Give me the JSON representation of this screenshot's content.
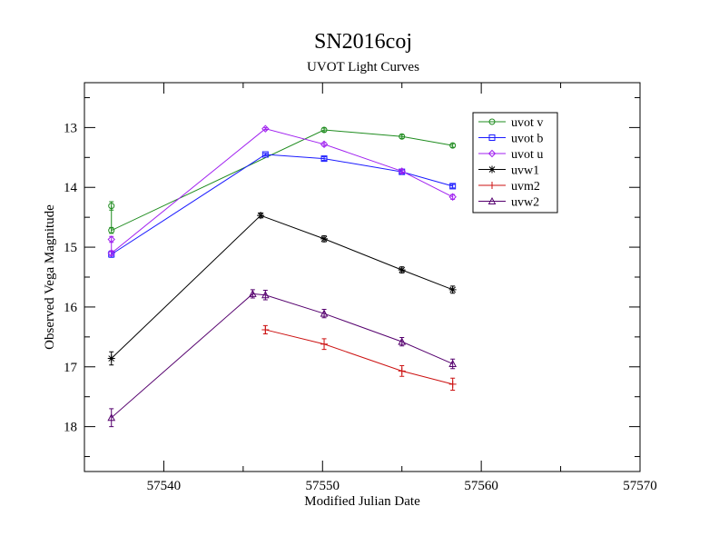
{
  "chart_data": {
    "type": "line",
    "title": "SN2016coj",
    "subtitle": "UVOT Light Curves",
    "xlabel": "Modified Julian Date",
    "ylabel": "Observed Vega Magnitude",
    "xlim": [
      57535,
      57570
    ],
    "ylim": [
      18.75,
      12.25
    ],
    "y_inverted": true,
    "x_ticks": [
      57540,
      57550,
      57560,
      57570
    ],
    "y_ticks": [
      13,
      14,
      15,
      16,
      17,
      18
    ],
    "grid": false,
    "legend_position": "top-right",
    "series": [
      {
        "name": "uvot v",
        "color": "#1f8c1f",
        "marker": "circle",
        "points": [
          {
            "x": 57536.7,
            "y": 14.31,
            "err": 0.07
          },
          {
            "x": 57536.7,
            "y": 14.72,
            "err": 0.05
          },
          {
            "x": 57550.1,
            "y": 13.04,
            "err": 0.03
          },
          {
            "x": 57555.0,
            "y": 13.15,
            "err": 0.03
          },
          {
            "x": 57558.2,
            "y": 13.3,
            "err": 0.03
          }
        ]
      },
      {
        "name": "uvot b",
        "color": "#1a1aff",
        "marker": "square",
        "points": [
          {
            "x": 57536.7,
            "y": 15.12,
            "err": 0.05
          },
          {
            "x": 57546.4,
            "y": 13.45,
            "err": 0.02
          },
          {
            "x": 57550.1,
            "y": 13.52,
            "err": 0.03
          },
          {
            "x": 57555.0,
            "y": 13.74,
            "err": 0.03
          },
          {
            "x": 57558.2,
            "y": 13.98,
            "err": 0.03
          }
        ]
      },
      {
        "name": "uvot u",
        "color": "#a020f0",
        "marker": "diamond",
        "points": [
          {
            "x": 57536.7,
            "y": 14.87,
            "err": 0.05
          },
          {
            "x": 57536.7,
            "y": 15.1,
            "err": 0.04
          },
          {
            "x": 57546.4,
            "y": 13.02,
            "err": 0.02
          },
          {
            "x": 57550.1,
            "y": 13.28,
            "err": 0.03
          },
          {
            "x": 57555.0,
            "y": 13.73,
            "err": 0.03
          },
          {
            "x": 57558.2,
            "y": 14.16,
            "err": 0.04
          }
        ]
      },
      {
        "name": "uvw1",
        "color": "#000000",
        "marker": "star",
        "points": [
          {
            "x": 57536.7,
            "y": 16.86,
            "err": 0.11
          },
          {
            "x": 57546.1,
            "y": 14.47,
            "err": 0.04
          },
          {
            "x": 57550.1,
            "y": 14.86,
            "err": 0.05
          },
          {
            "x": 57555.0,
            "y": 15.38,
            "err": 0.05
          },
          {
            "x": 57558.2,
            "y": 15.71,
            "err": 0.06
          }
        ]
      },
      {
        "name": "uvm2",
        "color": "#cc1111",
        "marker": "plus",
        "points": [
          {
            "x": 57546.4,
            "y": 16.38,
            "err": 0.07
          },
          {
            "x": 57550.1,
            "y": 16.62,
            "err": 0.09
          },
          {
            "x": 57555.0,
            "y": 17.07,
            "err": 0.09
          },
          {
            "x": 57558.2,
            "y": 17.29,
            "err": 0.1
          }
        ]
      },
      {
        "name": "uvw2",
        "color": "#55006e",
        "marker": "triangle",
        "points": [
          {
            "x": 57536.7,
            "y": 17.85,
            "err": 0.15
          },
          {
            "x": 57545.6,
            "y": 15.78,
            "err": 0.07
          },
          {
            "x": 57546.4,
            "y": 15.8,
            "err": 0.08
          },
          {
            "x": 57550.1,
            "y": 16.11,
            "err": 0.07
          },
          {
            "x": 57555.0,
            "y": 16.58,
            "err": 0.07
          },
          {
            "x": 57558.2,
            "y": 16.95,
            "err": 0.08
          }
        ]
      }
    ]
  }
}
